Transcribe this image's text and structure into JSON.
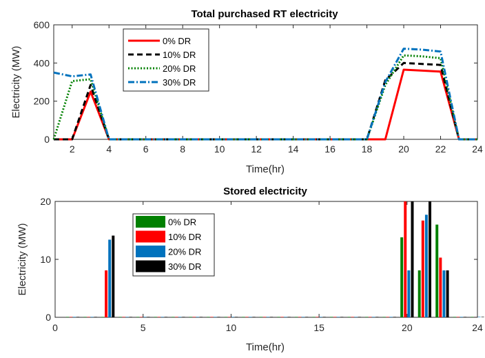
{
  "chart_data": [
    {
      "type": "line",
      "title": "Total purchased RT electricity",
      "xlabel": "Time(hr)",
      "ylabel": "Electricity (MW)",
      "xlim": [
        1,
        24
      ],
      "ylim": [
        0,
        600
      ],
      "xticks": [
        2,
        4,
        6,
        8,
        10,
        12,
        14,
        16,
        18,
        20,
        22,
        24
      ],
      "yticks": [
        0,
        200,
        400,
        600
      ],
      "legend_position": "top-left",
      "grid": false,
      "x": [
        1,
        2,
        3,
        4,
        5,
        6,
        7,
        8,
        9,
        10,
        11,
        12,
        13,
        14,
        15,
        16,
        17,
        18,
        19,
        20,
        21,
        22,
        23,
        24
      ],
      "series": [
        {
          "name": "0% DR",
          "color": "#ff0000",
          "dash": "solid",
          "values": [
            0,
            0,
            250,
            0,
            0,
            0,
            0,
            0,
            0,
            0,
            0,
            0,
            0,
            0,
            0,
            0,
            0,
            0,
            0,
            365,
            360,
            355,
            0,
            0
          ]
        },
        {
          "name": "10% DR",
          "color": "#000000",
          "dash": "dashed",
          "values": [
            0,
            0,
            285,
            0,
            0,
            0,
            0,
            0,
            0,
            0,
            0,
            0,
            0,
            0,
            0,
            0,
            0,
            0,
            310,
            400,
            395,
            390,
            0,
            0
          ]
        },
        {
          "name": "20% DR",
          "color": "#008000",
          "dash": "dotted",
          "values": [
            0,
            305,
            315,
            0,
            0,
            0,
            0,
            0,
            0,
            0,
            0,
            0,
            0,
            0,
            0,
            0,
            0,
            0,
            285,
            440,
            435,
            425,
            0,
            0
          ]
        },
        {
          "name": "30% DR",
          "color": "#0072bd",
          "dash": "dashdot",
          "values": [
            350,
            330,
            340,
            0,
            0,
            0,
            0,
            0,
            0,
            0,
            0,
            0,
            0,
            0,
            0,
            0,
            0,
            0,
            300,
            475,
            470,
            460,
            0,
            0
          ]
        }
      ]
    },
    {
      "type": "bar",
      "title": "Stored electricity",
      "xlabel": "Time(hr)",
      "ylabel": "Electricity (MW)",
      "xlim": [
        0,
        24
      ],
      "ylim": [
        0,
        20
      ],
      "xticks": [
        0,
        5,
        10,
        15,
        20,
        24
      ],
      "yticks": [
        0,
        10,
        20
      ],
      "legend_position": "top-left",
      "grid": false,
      "x": [
        1,
        2,
        3,
        4,
        5,
        6,
        7,
        8,
        9,
        10,
        11,
        12,
        13,
        14,
        15,
        16,
        17,
        18,
        19,
        20,
        21,
        22,
        23,
        24
      ],
      "series": [
        {
          "name": "0% DR",
          "color": "#008000",
          "values": [
            0,
            0,
            0,
            0,
            0,
            0,
            0,
            0,
            0,
            0,
            0,
            0,
            0,
            0,
            0,
            0,
            0,
            0,
            0,
            13.8,
            8.1,
            16,
            0,
            0
          ]
        },
        {
          "name": "10% DR",
          "color": "#ff0000",
          "values": [
            0,
            0,
            8.1,
            0,
            0,
            0,
            0,
            0,
            0,
            0,
            0,
            0,
            0,
            0,
            0,
            0,
            0,
            0,
            0,
            20,
            16.7,
            10.3,
            0,
            0
          ]
        },
        {
          "name": "20% DR",
          "color": "#0072bd",
          "values": [
            0,
            0,
            13.4,
            0,
            0,
            0,
            0,
            0,
            0,
            0,
            0,
            0,
            0,
            0,
            0,
            0,
            0,
            0,
            0,
            8.1,
            17.7,
            8.1,
            0,
            0
          ]
        },
        {
          "name": "30% DR",
          "color": "#000000",
          "values": [
            0,
            0,
            14.1,
            0,
            0,
            0,
            0,
            0,
            0,
            0,
            0,
            0,
            0,
            0,
            0,
            0,
            0,
            0,
            0,
            20,
            20,
            8.1,
            0,
            0
          ]
        }
      ]
    }
  ]
}
